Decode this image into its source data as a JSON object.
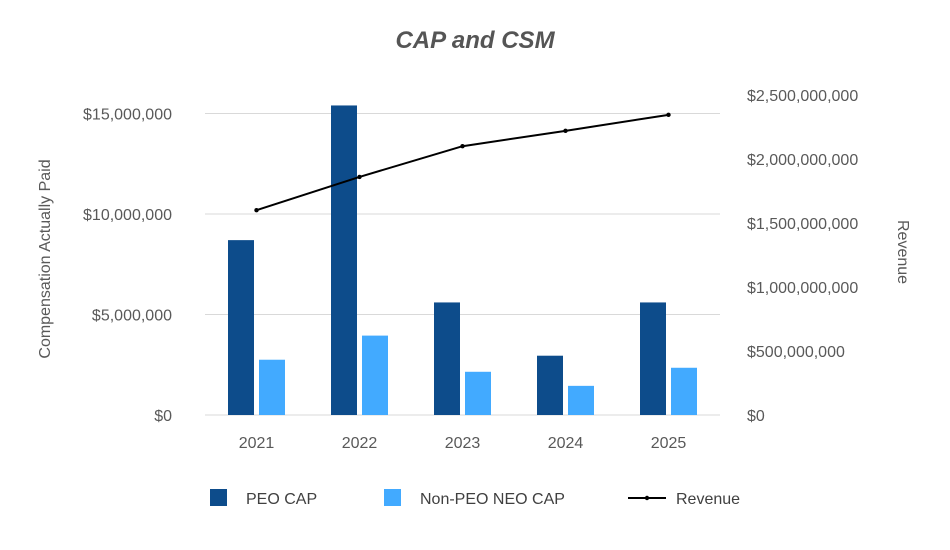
{
  "chart_data": {
    "type": "bar",
    "title": "CAP and CSM",
    "categories": [
      "2021",
      "2022",
      "2023",
      "2024",
      "2025"
    ],
    "series": [
      {
        "name": "PEO CAP",
        "type": "bar",
        "axis": "left",
        "color": "#0d4c8b",
        "values": [
          8700000,
          15400000,
          5600000,
          2950000,
          5600000
        ]
      },
      {
        "name": "Non-PEO NEO CAP",
        "type": "bar",
        "axis": "left",
        "color": "#42aaff",
        "values": [
          2750000,
          3950000,
          2150000,
          1450000,
          2350000
        ]
      }
    ],
    "line_series": [
      {
        "name": "Revenue",
        "type": "line",
        "axis": "right",
        "color": "#000000",
        "values": [
          1600000000,
          1860000000,
          2100000000,
          2220000000,
          2345000000
        ]
      }
    ],
    "ylabel": "Compensation Actually Paid",
    "y2label": "Revenue",
    "xlabel": "",
    "ylim": [
      0,
      16000000
    ],
    "y2lim": [
      0,
      2500000000
    ],
    "yticks": [
      "$0",
      "$5,000,000",
      "$10,000,000",
      "$15,000,000"
    ],
    "yticks_values": [
      0,
      5000000,
      10000000,
      15000000
    ],
    "y2ticks": [
      "$0",
      "$500,000,000",
      "$1,000,000,000",
      "$1,500,000,000",
      "$2,000,000,000",
      "$2,500,000,000"
    ],
    "y2ticks_values": [
      0,
      500000000,
      1000000000,
      1500000000,
      2000000000,
      2500000000
    ],
    "grid": true,
    "legend": {
      "placement": "bottom",
      "items": [
        {
          "label": "PEO CAP",
          "marker": "square",
          "color": "#0d4c8b"
        },
        {
          "label": "Non-PEO NEO CAP",
          "marker": "square",
          "color": "#42aaff"
        },
        {
          "label": "Revenue",
          "marker": "line",
          "color": "#000000"
        }
      ]
    }
  }
}
